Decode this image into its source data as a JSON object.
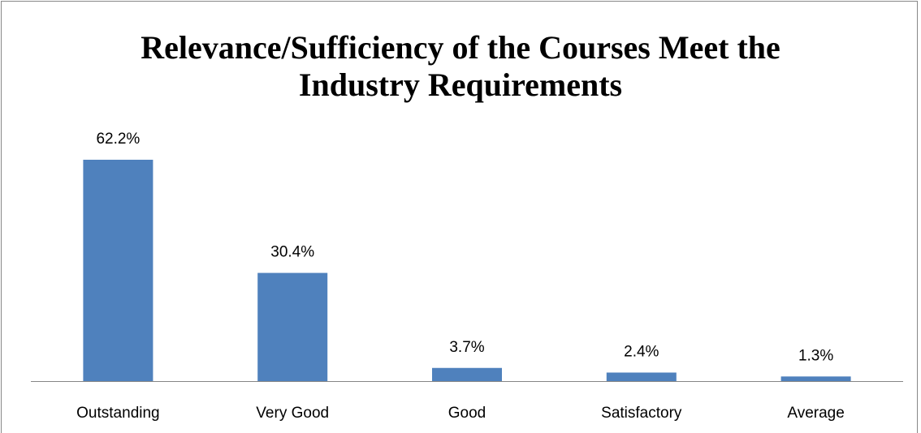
{
  "chart_data": {
    "type": "bar",
    "title": "Relevance/Sufficiency of the Courses Meet the Industry Requirements",
    "categories": [
      "Outstanding",
      "Very Good",
      "Good",
      "Satisfactory",
      "Average"
    ],
    "values": [
      62.2,
      30.4,
      3.7,
      2.4,
      1.3
    ],
    "value_labels": [
      "62.2%",
      "30.4%",
      "3.7%",
      "2.4%",
      "1.3%"
    ],
    "color": "#4f81bd"
  }
}
